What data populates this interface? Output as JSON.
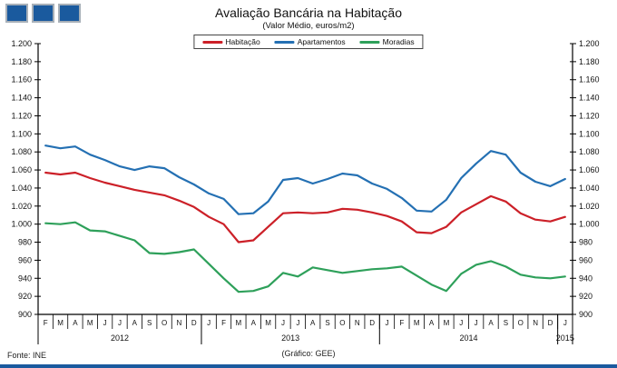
{
  "window": {
    "decoration": "three-blue-squares",
    "accent_blue": "#1a5a9e"
  },
  "chart_data": {
    "type": "line",
    "title": "Avaliação Bancária na Habitação",
    "subtitle": "(Valor Médio, euros/m2)",
    "ylim": [
      900,
      1200
    ],
    "ytick_step": 20,
    "grid": false,
    "legend_position": "top-center",
    "y_tick_labels": [
      "1.200",
      "1.180",
      "1.160",
      "1.140",
      "1.120",
      "1.100",
      "1.080",
      "1.060",
      "1.040",
      "1.020",
      "1.000",
      "980",
      "960",
      "940",
      "920",
      "900"
    ],
    "x_months": [
      "F",
      "M",
      "A",
      "M",
      "J",
      "J",
      "A",
      "S",
      "O",
      "N",
      "D",
      "J",
      "F",
      "M",
      "A",
      "M",
      "J",
      "J",
      "A",
      "S",
      "O",
      "N",
      "D",
      "J",
      "F",
      "M",
      "A",
      "M",
      "J",
      "J",
      "A",
      "S",
      "O",
      "N",
      "D",
      "J"
    ],
    "year_groups": [
      {
        "label": "2012",
        "count": 11
      },
      {
        "label": "2013",
        "count": 12
      },
      {
        "label": "2014",
        "count": 12
      },
      {
        "label": "2015",
        "count": 1
      }
    ],
    "series": [
      {
        "name": "Habitação",
        "color": "#cc2028",
        "values": [
          1057,
          1055,
          1057,
          1051,
          1046,
          1042,
          1038,
          1035,
          1032,
          1026,
          1019,
          1008,
          1000,
          980,
          982,
          997,
          1012,
          1013,
          1012,
          1013,
          1017,
          1016,
          1013,
          1009,
          1003,
          991,
          990,
          997,
          1013,
          1022,
          1031,
          1025,
          1012,
          1005,
          1003,
          1008
        ]
      },
      {
        "name": "Apartamentos",
        "color": "#2470b3",
        "values": [
          1087,
          1084,
          1086,
          1077,
          1071,
          1064,
          1060,
          1064,
          1062,
          1052,
          1044,
          1034,
          1028,
          1011,
          1012,
          1025,
          1049,
          1051,
          1045,
          1050,
          1056,
          1054,
          1045,
          1039,
          1029,
          1015,
          1014,
          1027,
          1051,
          1067,
          1081,
          1077,
          1057,
          1047,
          1042,
          1050
        ]
      },
      {
        "name": "Moradias",
        "color": "#2ea05a",
        "values": [
          1001,
          1000,
          1002,
          993,
          992,
          987,
          982,
          968,
          967,
          969,
          972,
          956,
          940,
          925,
          926,
          931,
          946,
          942,
          952,
          949,
          946,
          948,
          950,
          951,
          953,
          943,
          933,
          926,
          945,
          955,
          959,
          953,
          944,
          941,
          940,
          942
        ]
      }
    ]
  },
  "footer": {
    "source": "Fonte:  INE",
    "credit": "(Gráfico:  GEE)"
  }
}
